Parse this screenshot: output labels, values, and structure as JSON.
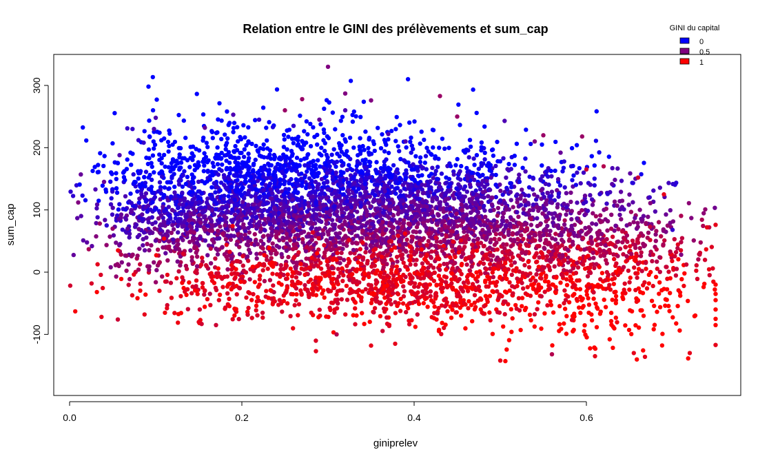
{
  "chart_data": {
    "type": "scatter",
    "title": "Relation entre le GINI des prélèvements et sum_cap",
    "xlabel": "giniprelev",
    "ylabel": "sum_cap",
    "xlim": [
      0.0,
      0.75
    ],
    "ylim": [
      -150,
      330
    ],
    "x_ticks": [
      0.0,
      0.2,
      0.4,
      0.6
    ],
    "x_tick_labels": [
      "0.0",
      "0.2",
      "0.4",
      "0.6"
    ],
    "y_ticks": [
      -100,
      0,
      100,
      200,
      300
    ],
    "y_tick_labels": [
      "-100",
      "0",
      "100",
      "200",
      "300"
    ],
    "grid": false,
    "color_variable": "GINI du capital",
    "legend": {
      "title": "GINI du capital",
      "placement": "top-right",
      "entries": [
        {
          "label": "0",
          "color": "#0000FF"
        },
        {
          "label": "0.5",
          "color": "#800080"
        },
        {
          "label": "1",
          "color": "#FF0000"
        }
      ]
    },
    "point_colors": {
      "low": "#0000FF",
      "high": "#FF0000"
    },
    "points": [
      {
        "x": 0.3,
        "y": 330,
        "c": 0.5
      },
      {
        "x": 0.32,
        "y": 287,
        "c": 0.5
      },
      {
        "x": 0.43,
        "y": 283,
        "c": 0.6
      },
      {
        "x": 0.27,
        "y": 278,
        "c": 0.6
      },
      {
        "x": 0.35,
        "y": 276,
        "c": 0.5
      },
      {
        "x": 0.25,
        "y": 260,
        "c": 0.6
      },
      {
        "x": 0.32,
        "y": 260,
        "c": 0.3
      },
      {
        "x": 0.19,
        "y": 253,
        "c": 0.3
      },
      {
        "x": 0.45,
        "y": 250,
        "c": 0.6
      },
      {
        "x": 0.1,
        "y": 248,
        "c": 0.3
      },
      {
        "x": 0.22,
        "y": 245,
        "c": 0.2
      },
      {
        "x": 0.29,
        "y": 245,
        "c": 0.4
      },
      {
        "x": 0.067,
        "y": 231,
        "c": 0.2
      },
      {
        "x": 0.073,
        "y": 230,
        "c": 0.2
      },
      {
        "x": 0.098,
        "y": 230,
        "c": 0.3
      },
      {
        "x": 0.157,
        "y": 232,
        "c": 0.4
      },
      {
        "x": 0.236,
        "y": 233,
        "c": 0.1
      },
      {
        "x": 0.26,
        "y": 235,
        "c": 0.2
      },
      {
        "x": 0.08,
        "y": 212,
        "c": 0.2
      },
      {
        "x": 0.086,
        "y": 208,
        "c": 0.2
      },
      {
        "x": 0.058,
        "y": 188,
        "c": 0.3
      },
      {
        "x": 0.013,
        "y": 157,
        "c": 0.4
      },
      {
        "x": 0.04,
        "y": 145,
        "c": 0.4
      },
      {
        "x": 0.01,
        "y": 112,
        "c": 0.5
      },
      {
        "x": 0.035,
        "y": 78,
        "c": 0.6
      },
      {
        "x": 0.03,
        "y": 133,
        "c": 0.3
      },
      {
        "x": 0.05,
        "y": 70,
        "c": 0.6
      },
      {
        "x": 0.037,
        "y": -72,
        "c": 0.9
      },
      {
        "x": 0.056,
        "y": -76,
        "c": 0.8
      },
      {
        "x": 0.087,
        "y": -68,
        "c": 0.9
      },
      {
        "x": 0.113,
        "y": -58,
        "c": 0.9
      },
      {
        "x": 0.15,
        "y": -80,
        "c": 0.9
      },
      {
        "x": 0.17,
        "y": -85,
        "c": 0.8
      },
      {
        "x": 0.286,
        "y": -127,
        "c": 0.9
      },
      {
        "x": 0.35,
        "y": -118,
        "c": 0.9
      },
      {
        "x": 0.378,
        "y": -115,
        "c": 0.9
      },
      {
        "x": 0.31,
        "y": -100,
        "c": 0.7
      },
      {
        "x": 0.5,
        "y": -142,
        "c": 0.9
      },
      {
        "x": 0.56,
        "y": -132,
        "c": 0.7
      },
      {
        "x": 0.61,
        "y": -135,
        "c": 0.9
      },
      {
        "x": 0.668,
        "y": -136,
        "c": 0.9
      },
      {
        "x": 0.655,
        "y": -130,
        "c": 0.9
      },
      {
        "x": 0.72,
        "y": -130,
        "c": 0.9
      },
      {
        "x": 0.75,
        "y": -117,
        "c": 0.9
      },
      {
        "x": 0.75,
        "y": -85,
        "c": 1.0
      },
      {
        "x": 0.75,
        "y": -75,
        "c": 1.0
      },
      {
        "x": 0.75,
        "y": -60,
        "c": 1.0
      },
      {
        "x": 0.75,
        "y": -45,
        "c": 1.0
      },
      {
        "x": 0.75,
        "y": -35,
        "c": 1.0
      },
      {
        "x": 0.75,
        "y": -20,
        "c": 1.0
      },
      {
        "x": 0.75,
        "y": 76,
        "c": 0.9
      },
      {
        "x": 0.74,
        "y": 72,
        "c": 0.9
      },
      {
        "x": 0.7,
        "y": 68,
        "c": 0.2
      },
      {
        "x": 0.71,
        "y": 28,
        "c": 0.5
      },
      {
        "x": 0.69,
        "y": 125,
        "c": 0.9
      },
      {
        "x": 0.66,
        "y": 152,
        "c": 0.8
      },
      {
        "x": 0.57,
        "y": 192,
        "c": 0.4
      },
      {
        "x": 0.595,
        "y": 218,
        "c": 0.6
      },
      {
        "x": 0.55,
        "y": 220,
        "c": 0.6
      },
      {
        "x": 0.54,
        "y": 210,
        "c": 0.5
      },
      {
        "x": 0.62,
        "y": 170,
        "c": 0.7
      },
      {
        "x": 0.6,
        "y": 165,
        "c": 0.8
      },
      {
        "x": 0.505,
        "y": 243,
        "c": 0.3
      },
      {
        "x": 0.39,
        "y": 210,
        "c": 0.3
      },
      {
        "x": 0.37,
        "y": 222,
        "c": 0.3
      }
    ],
    "cloud": [
      {
        "cx": 0.22,
        "cy": 120,
        "sx": 0.08,
        "sy": 55,
        "n": 1400,
        "cmode": "vertical"
      },
      {
        "cx": 0.36,
        "cy": 95,
        "sx": 0.09,
        "sy": 60,
        "n": 1700,
        "cmode": "vertical"
      },
      {
        "cx": 0.5,
        "cy": 60,
        "sx": 0.08,
        "sy": 60,
        "n": 1000,
        "cmode": "vertical"
      },
      {
        "cx": 0.12,
        "cy": 90,
        "sx": 0.05,
        "sy": 55,
        "n": 500,
        "cmode": "vertical"
      },
      {
        "cx": 0.63,
        "cy": 10,
        "sx": 0.06,
        "sy": 60,
        "n": 500,
        "cmode": "vertical"
      },
      {
        "cx": 0.35,
        "cy": -20,
        "sx": 0.12,
        "sy": 30,
        "n": 700,
        "cmode": "red"
      }
    ]
  }
}
